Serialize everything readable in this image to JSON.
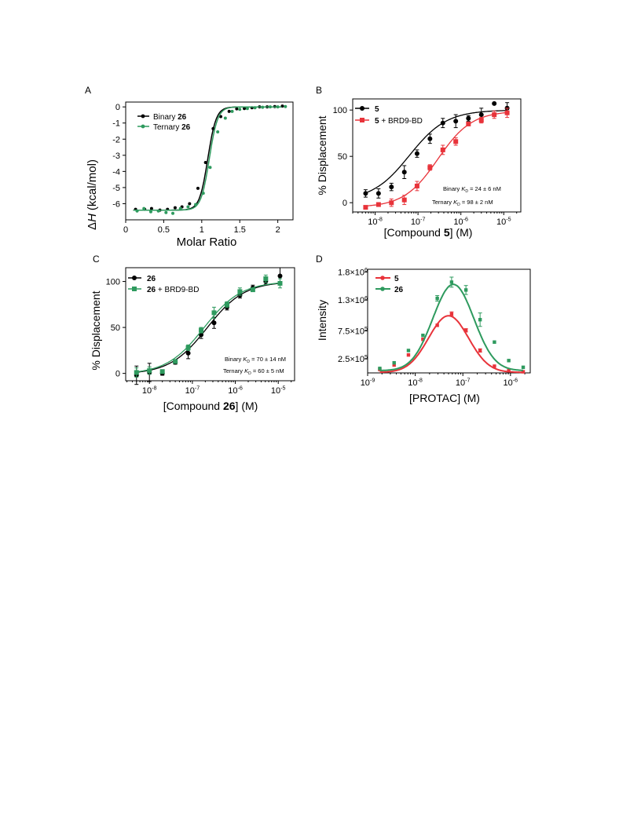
{
  "panels": {
    "a": {
      "letter": "A"
    },
    "b": {
      "letter": "B"
    },
    "c": {
      "letter": "C"
    },
    "d": {
      "letter": "D"
    }
  },
  "chart_data": [
    {
      "type": "scatter",
      "panel": "A",
      "ylabel_delta": "Δ",
      "ylabel_H": "H",
      "ylabel_unit": "(kcal/mol)",
      "xlabel": "Molar Ratio",
      "xlim": [
        0,
        2.2
      ],
      "ylim": [
        -7,
        0.3
      ],
      "x_ticks": [
        0,
        0.5,
        1,
        1.5,
        2
      ],
      "x_tick_labels": [
        "0",
        "0.5",
        "1",
        "1.5",
        "2"
      ],
      "y_ticks": [
        0,
        -1,
        -2,
        -3,
        -4,
        -5,
        -6
      ],
      "y_tick_labels": [
        "0",
        "-1",
        "-2",
        "-3",
        "-4",
        "-5",
        "-6"
      ],
      "legend_position": "top-left",
      "series": [
        {
          "name_prefix": "Binary ",
          "name_compound": "26",
          "color": "#000000",
          "x": [
            0.13,
            0.25,
            0.34,
            0.45,
            0.55,
            0.65,
            0.74,
            0.84,
            0.95,
            1.05,
            1.15,
            1.25,
            1.36,
            1.46,
            1.56,
            1.66,
            1.76,
            1.86,
            1.96,
            2.06
          ],
          "y": [
            -6.35,
            -6.35,
            -6.3,
            -6.4,
            -6.35,
            -6.25,
            -6.2,
            -6.0,
            -5.05,
            -3.45,
            -1.35,
            -0.6,
            -0.28,
            -0.12,
            -0.1,
            -0.05,
            0.0,
            0.0,
            0.02,
            0.05
          ],
          "fit_midpoint": 1.08,
          "fit_width": 0.055
        },
        {
          "name_prefix": "Ternary ",
          "name_compound": "26",
          "color": "#2e9a5e",
          "x": [
            0.15,
            0.24,
            0.33,
            0.43,
            0.53,
            0.62,
            0.72,
            0.82,
            0.92,
            1.02,
            1.11,
            1.21,
            1.31,
            1.4,
            1.5,
            1.6,
            1.7,
            1.8,
            1.9,
            2.0,
            2.1
          ],
          "y": [
            -6.45,
            -6.3,
            -6.5,
            -6.45,
            -6.55,
            -6.6,
            -6.3,
            -6.2,
            -6.05,
            -5.35,
            -3.75,
            -1.55,
            -0.7,
            -0.28,
            -0.15,
            -0.1,
            -0.05,
            -0.02,
            0.0,
            0.0,
            0.02
          ],
          "fit_midpoint": 1.1,
          "fit_width": 0.055
        }
      ]
    },
    {
      "type": "scatter",
      "panel": "B",
      "ylabel": "% Displacement",
      "xlabel_pre": "[Compound ",
      "xlabel_bold": "5",
      "xlabel_post": "] (M)",
      "x_scale": "log",
      "xlim": [
        3e-09,
        2.5e-05
      ],
      "ylim": [
        -10,
        112
      ],
      "x_ticks": [
        1e-08,
        1e-07,
        1e-06,
        1e-05
      ],
      "x_tick_exponents": [
        "-8",
        "-7",
        "-6",
        "-5"
      ],
      "y_ticks": [
        0,
        50,
        100
      ],
      "y_tick_labels": [
        "0",
        "50",
        "100"
      ],
      "legend_position": "top-left",
      "annotations": [
        {
          "pre": "Binary ",
          "k": "K",
          "sub": "D",
          "post": " =  24 ± 6 nM"
        },
        {
          "pre": "Ternary ",
          "k": "K",
          "sub": "D",
          "post": " = 98 ± 2 nM"
        }
      ],
      "series": [
        {
          "name_bold": "5",
          "name_rest": "",
          "color": "#000000",
          "marker": "circle",
          "x": [
            6e-09,
            1.2e-08,
            2.4e-08,
            4.8e-08,
            9.5e-08,
            1.9e-07,
            3.8e-07,
            7.6e-07,
            1.5e-06,
            3e-06,
            6e-06,
            1.2e-05
          ],
          "y": [
            10,
            10,
            17,
            33,
            53,
            69,
            86,
            88,
            91,
            95,
            107,
            102
          ],
          "err": [
            4,
            5,
            4,
            7,
            4,
            5,
            5,
            7,
            3,
            7,
            0,
            6
          ],
          "fit_ec50": 6.3e-08,
          "fit_hill": 1.0,
          "fit_bottom": 2,
          "fit_top": 100
        },
        {
          "name_bold": "5",
          "name_rest": " + BRD9-BD",
          "color": "#e8333a",
          "marker": "square",
          "x": [
            6e-09,
            1.2e-08,
            2.4e-08,
            4.8e-08,
            9.5e-08,
            1.9e-07,
            3.8e-07,
            7.6e-07,
            1.5e-06,
            3e-06,
            6e-06,
            1.2e-05
          ],
          "y": [
            -5,
            -2,
            0,
            3,
            18,
            38,
            57,
            66,
            85,
            89,
            95,
            97
          ],
          "err": [
            0,
            2,
            4,
            5,
            5,
            3,
            5,
            4,
            2,
            3,
            4,
            5
          ],
          "fit_ec50": 2.9e-07,
          "fit_hill": 1.1,
          "fit_bottom": -5,
          "fit_top": 99
        }
      ]
    },
    {
      "type": "scatter",
      "panel": "C",
      "ylabel": "% Displacement",
      "xlabel_pre": "[Compound ",
      "xlabel_bold": "26",
      "xlabel_post": "] (M)",
      "x_scale": "log",
      "xlim": [
        2.8e-09,
        2.4e-05
      ],
      "ylim": [
        -8,
        115
      ],
      "x_ticks": [
        1e-08,
        1e-07,
        1e-06,
        1e-05
      ],
      "x_tick_exponents": [
        "-8",
        "-7",
        "-6",
        "-5"
      ],
      "y_ticks": [
        0,
        50,
        100
      ],
      "y_tick_labels": [
        "0",
        "50",
        "100"
      ],
      "legend_position": "top-left",
      "annotations": [
        {
          "pre": "Binary ",
          "k": "K",
          "sub": "D",
          "post": " = 70 ± 14 nM"
        },
        {
          "pre": "Ternary ",
          "k": "K",
          "sub": "D",
          "post": " = 60 ± 5 nM"
        }
      ],
      "series": [
        {
          "name_bold": "26",
          "name_rest": "",
          "color": "#000000",
          "marker": "circle",
          "x": [
            5e-09,
            1e-08,
            2e-08,
            4e-08,
            8e-08,
            1.6e-07,
            3.2e-07,
            6.4e-07,
            1.28e-06,
            2.56e-06,
            5.12e-06,
            1.1e-05
          ],
          "y": [
            -2,
            1,
            0,
            12,
            22,
            42,
            55,
            72,
            85,
            93,
            100,
            106
          ],
          "err": [
            10,
            10,
            2,
            2,
            6,
            4,
            6,
            3,
            3,
            3,
            3,
            9
          ],
          "fit_ec50": 2.2e-07,
          "fit_hill": 1.0,
          "fit_bottom": -1,
          "fit_top": 100
        },
        {
          "name_bold": "26",
          "name_rest": " + BRD9-BD",
          "color": "#2e9a5e",
          "marker": "square",
          "x": [
            5e-09,
            1e-08,
            2e-08,
            4e-08,
            8e-08,
            1.6e-07,
            3.2e-07,
            6.4e-07,
            1.28e-06,
            2.56e-06,
            5.12e-06,
            1.1e-05
          ],
          "y": [
            1,
            3,
            2,
            13,
            28,
            47,
            66,
            75,
            89,
            91,
            103,
            98
          ],
          "err": [
            5,
            4,
            2,
            2,
            3,
            3,
            6,
            3,
            4,
            2,
            4,
            5
          ],
          "fit_ec50": 1.85e-07,
          "fit_hill": 1.0,
          "fit_bottom": -1,
          "fit_top": 100
        }
      ]
    },
    {
      "type": "scatter",
      "panel": "D",
      "ylabel": "Intensity",
      "xlabel": "[PROTAC] (M)",
      "x_scale": "log",
      "xlim": [
        1e-09,
        2.6e-06
      ],
      "ylim": [
        0,
        1850000
      ],
      "x_ticks": [
        1e-09,
        1e-08,
        1e-07,
        1e-06
      ],
      "x_tick_exponents": [
        "-9",
        "-8",
        "-7",
        "-6"
      ],
      "y_ticks": [
        250000,
        750000,
        1300000,
        1800000
      ],
      "y_tick_mantissa": [
        "2.5",
        "7.5",
        "1.3",
        "1.8"
      ],
      "y_tick_exponents": [
        "5",
        "5",
        "6",
        "6"
      ],
      "legend_position": "top-left",
      "series": [
        {
          "name_bold": "5",
          "color": "#e8333a",
          "x": [
            1.8e-09,
            3.6e-09,
            7.2e-09,
            1.45e-08,
            2.9e-08,
            5.8e-08,
            1.16e-07,
            2.3e-07,
            4.6e-07,
            9.2e-07,
            1.85e-06
          ],
          "y": [
            60000,
            140000,
            320000,
            600000,
            850000,
            1050000,
            760000,
            400000,
            120000,
            40000,
            20000
          ],
          "err": [
            0,
            0,
            0,
            0,
            0,
            40000,
            30000,
            30000,
            0,
            0,
            0
          ],
          "fit_peak": 1020000,
          "fit_center_log": -7.3,
          "fit_sigma_log": 0.42,
          "fit_base": 10000
        },
        {
          "name_bold": "26",
          "color": "#2e9a5e",
          "x": [
            1.8e-09,
            3.6e-09,
            7.2e-09,
            1.45e-08,
            2.9e-08,
            5.8e-08,
            1.16e-07,
            2.3e-07,
            4.6e-07,
            9.2e-07,
            1.85e-06
          ],
          "y": [
            80000,
            180000,
            400000,
            670000,
            1330000,
            1620000,
            1480000,
            950000,
            550000,
            220000,
            100000
          ],
          "err": [
            0,
            0,
            0,
            0,
            50000,
            90000,
            80000,
            120000,
            0,
            0,
            0
          ],
          "fit_peak": 1580000,
          "fit_center_log": -7.2,
          "fit_sigma_log": 0.43,
          "fit_base": 40000
        }
      ]
    }
  ]
}
